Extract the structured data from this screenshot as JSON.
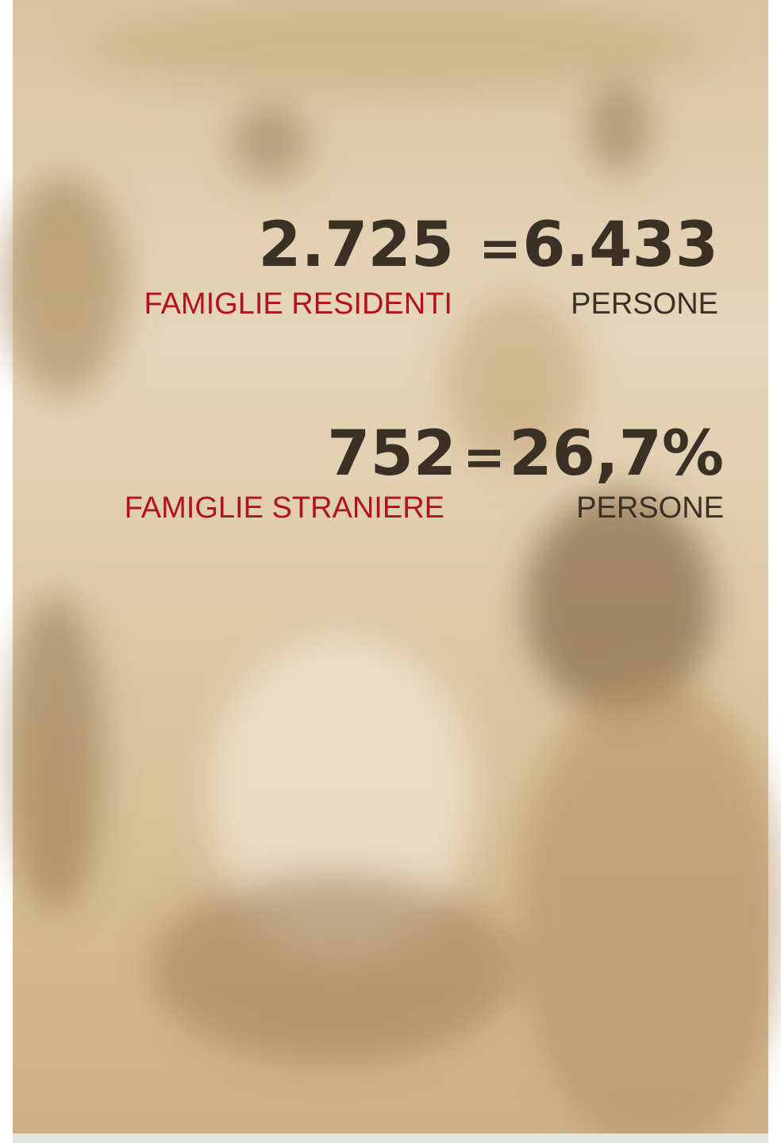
{
  "stats": [
    {
      "number": "2.725",
      "equals": "=",
      "result": "6.433",
      "label": "FAMIGLIE RESIDENTI",
      "result_label": "PERSONE"
    },
    {
      "number": "752",
      "equals": "=",
      "result": "26,7%",
      "label": "FAMIGLIE STRANIERE",
      "result_label": "PERSONE"
    }
  ]
}
